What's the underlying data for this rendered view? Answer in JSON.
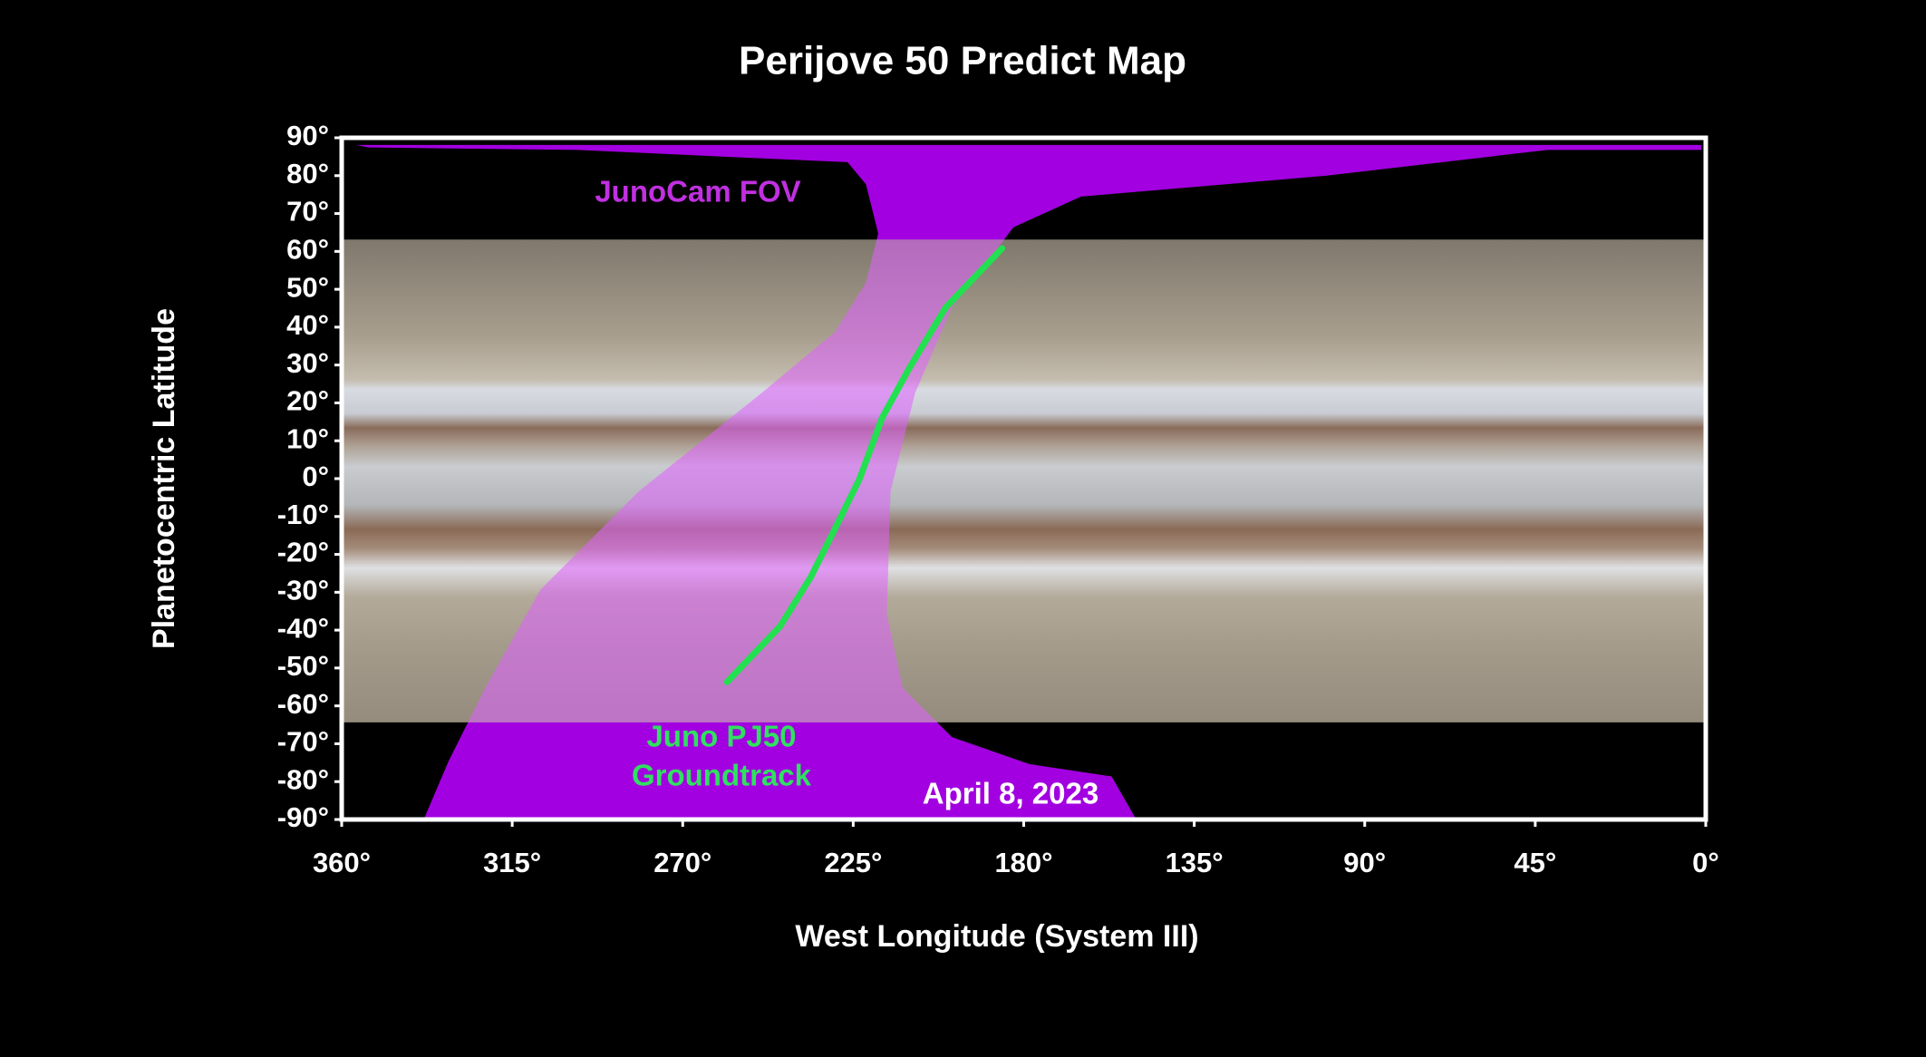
{
  "chart_data": {
    "type": "line",
    "title": "Perijove 50 Predict Map",
    "x_label": "West Longitude (System III)",
    "y_label": "Planetocentric Latitude",
    "xlim": [
      360,
      0
    ],
    "ylim": [
      -90,
      90
    ],
    "xticks": [
      {
        "value": 360,
        "label": "360°"
      },
      {
        "value": 315,
        "label": "315°"
      },
      {
        "value": 270,
        "label": "270°"
      },
      {
        "value": 225,
        "label": "225°"
      },
      {
        "value": 180,
        "label": "180°"
      },
      {
        "value": 135,
        "label": "135°"
      },
      {
        "value": 90,
        "label": "90°"
      },
      {
        "value": 45,
        "label": "45°"
      },
      {
        "value": 0,
        "label": "0°"
      }
    ],
    "yticks": [
      {
        "value": 90,
        "label": "90°"
      },
      {
        "value": 80,
        "label": "80°"
      },
      {
        "value": 70,
        "label": "70°"
      },
      {
        "value": 60,
        "label": "60°"
      },
      {
        "value": 50,
        "label": "50°"
      },
      {
        "value": 40,
        "label": "40°"
      },
      {
        "value": 30,
        "label": "30°"
      },
      {
        "value": 20,
        "label": "20°"
      },
      {
        "value": 10,
        "label": "10°"
      },
      {
        "value": 0,
        "label": "0°"
      },
      {
        "value": -10,
        "label": "-10°"
      },
      {
        "value": -20,
        "label": "-20°"
      },
      {
        "value": -30,
        "label": "-30°"
      },
      {
        "value": -40,
        "label": "-40°"
      },
      {
        "value": -50,
        "label": "-50°"
      },
      {
        "value": -60,
        "label": "-60°"
      },
      {
        "value": -70,
        "label": "-70°"
      },
      {
        "value": -80,
        "label": "-80°"
      },
      {
        "value": -90,
        "label": "-90°"
      }
    ],
    "series": [
      {
        "color": "#22e050",
        "x": [
          185.7,
          200.6,
          210.3,
          217.4,
          223.3,
          229.7,
          236.2,
          244.3,
          258.3
        ],
        "values": [
          60.8,
          45.2,
          29,
          16,
          0,
          -13,
          -26,
          -39,
          -53.7
        ]
      }
    ],
    "annotations": [
      {
        "text": "JunoCam FOV",
        "color": "#c030e0"
      },
      {
        "text": "Juno PJ50",
        "color": "#30e060"
      },
      {
        "text": "Groundtrack",
        "color": "#30e060"
      },
      {
        "text": "April 8, 2023",
        "color": "#ffffff"
      }
    ]
  }
}
